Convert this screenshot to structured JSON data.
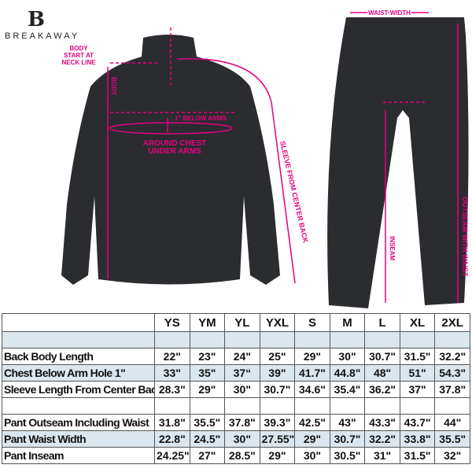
{
  "brand": {
    "logo_letter": "B",
    "name": "BREAKAWAY"
  },
  "annotations": {
    "body_start": [
      "BODY",
      "START AT",
      "NECK LINE"
    ],
    "body": "BODY",
    "below_arms": "1\" BELOW ARMS",
    "around_chest": [
      "AROUND CHEST",
      "UNDER ARMS"
    ],
    "sleeve": "SLEEVE FROM CENTER BACK",
    "waist_width": "WAIST WIDTH",
    "inseam": "INSEAM",
    "outseam": "OUTSEAM WITH WAIST"
  },
  "colors": {
    "accent": "#e6007e",
    "garment": "#2a2c30",
    "shade": "#dbe6ee"
  },
  "table": {
    "sizes": [
      "YS",
      "YM",
      "YL",
      "YXL",
      "S",
      "M",
      "L",
      "XL",
      "2XL"
    ],
    "rows": [
      {
        "label": "Back Body Length",
        "values": [
          "22\"",
          "23\"",
          "24\"",
          "25\"",
          "29\"",
          "30\"",
          "30.7\"",
          "31.5\"",
          "32.2\""
        ]
      },
      {
        "label": "Chest Below Arm Hole 1\"",
        "values": [
          "33\"",
          "35\"",
          "37“",
          "39\"",
          "41.7\"",
          "44.8\"",
          "48\"",
          "51\"",
          "54.3\""
        ]
      },
      {
        "label": "Sleeve Length From Center Back",
        "values": [
          "28.3\"",
          "29\"",
          "30\"",
          "30.7\"",
          "34.6\"",
          "35.4\"",
          "36.2\"",
          "37\"",
          "37.8\""
        ]
      },
      {
        "label": "Pant Outseam Including Waist",
        "values": [
          "31.8\"",
          "35.5\"",
          "37.8\"",
          "39.3\"",
          "42.5\"",
          "43\"",
          "43.3\"",
          "43.7\"",
          "44\""
        ]
      },
      {
        "label": "Pant Waist Width",
        "values": [
          "22.8\"",
          "24.5\"",
          "30\"",
          "27.55\"",
          "29\"",
          "30.7\"",
          "32.2\"",
          "33.8\"",
          "35.5\""
        ]
      },
      {
        "label": "Pant Inseam",
        "values": [
          "24.25\"",
          "27\"",
          "28.5\"",
          "29\"",
          "30\"",
          "30.5\"",
          "31\"",
          "31.5\"",
          "32\""
        ]
      }
    ]
  }
}
